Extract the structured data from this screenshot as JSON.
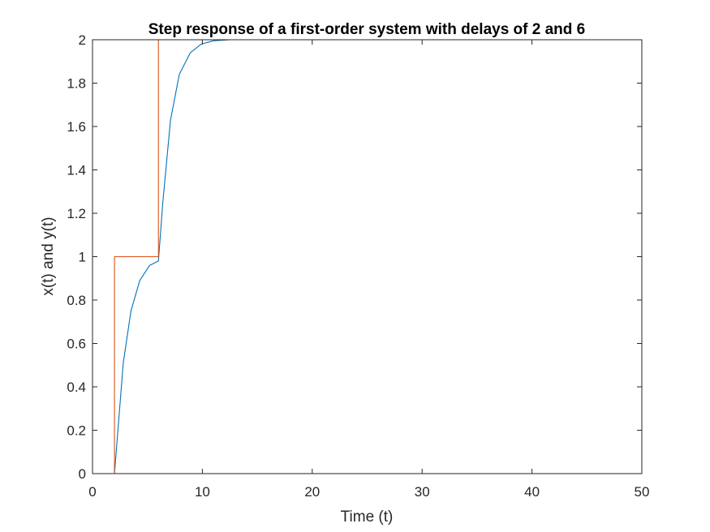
{
  "chart_data": {
    "type": "line",
    "title": "Step response of a first-order system with delays of 2 and 6",
    "xlabel": "Time (t)",
    "ylabel": "x(t) and y(t)",
    "xlim": [
      0,
      50
    ],
    "ylim": [
      0,
      2
    ],
    "xticks": [
      0,
      10,
      20,
      30,
      40,
      50
    ],
    "yticks": [
      0,
      0.2,
      0.4,
      0.6,
      0.8,
      1,
      1.2,
      1.4,
      1.6,
      1.8,
      2
    ],
    "xtick_labels": [
      "0",
      "10",
      "20",
      "30",
      "40",
      "50"
    ],
    "ytick_labels": [
      "0",
      "0.2",
      "0.4",
      "0.6",
      "0.8",
      "1",
      "1.2",
      "1.4",
      "1.6",
      "1.8",
      "2"
    ],
    "grid": false,
    "box": true,
    "series": [
      {
        "color": "#0072BD",
        "x": [
          0,
          2,
          2.8,
          3.5,
          4.3,
          5.2,
          6,
          6.4,
          7.1,
          7.9,
          8.9,
          9.9,
          11,
          12.5,
          14,
          16,
          20,
          30,
          40,
          50
        ],
        "y": [
          0,
          0,
          0.51,
          0.75,
          0.89,
          0.96,
          0.98,
          1.25,
          1.63,
          1.84,
          1.94,
          1.98,
          1.995,
          2,
          2,
          2,
          2,
          2,
          2,
          2
        ]
      },
      {
        "color": "#D95319",
        "x": [
          0,
          2,
          2,
          6,
          6,
          50
        ],
        "y": [
          0,
          0,
          1,
          1,
          2,
          2
        ]
      }
    ]
  }
}
